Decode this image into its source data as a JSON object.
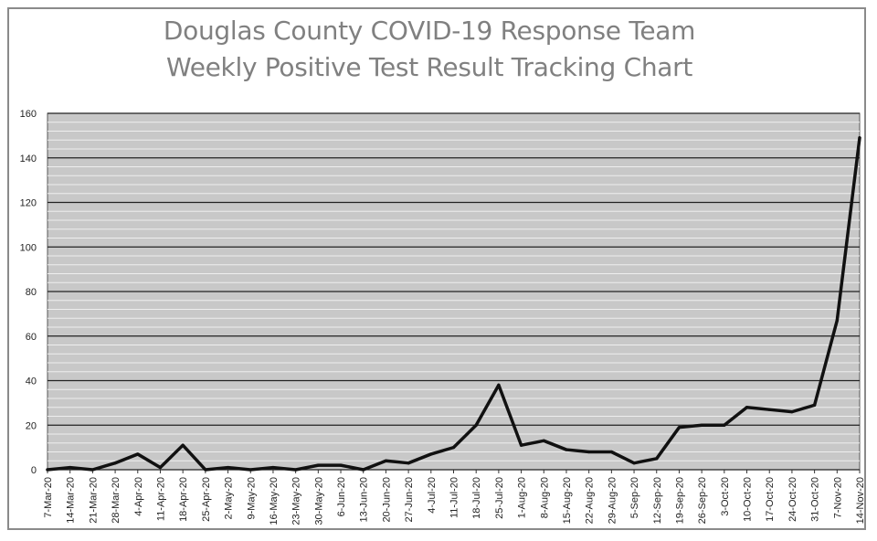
{
  "chart_data": {
    "type": "line",
    "title": "Douglas County COVID-19 Response Team",
    "subtitle": "Weekly Positive Test Result Tracking Chart",
    "xlabel": "",
    "ylabel": "",
    "ylim": [
      0,
      160
    ],
    "yticks": [
      "0",
      "20",
      "40",
      "60",
      "80",
      "100",
      "120",
      "140",
      "160"
    ],
    "grid": true,
    "categories": [
      "7-Mar-20",
      "14-Mar-20",
      "21-Mar-20",
      "28-Mar-20",
      "4-Apr-20",
      "11-Apr-20",
      "18-Apr-20",
      "25-Apr-20",
      "2-May-20",
      "9-May-20",
      "16-May-20",
      "23-May-20",
      "30-May-20",
      "6-Jun-20",
      "13-Jun-20",
      "20-Jun-20",
      "27-Jun-20",
      "4-Jul-20",
      "11-Jul-20",
      "18-Jul-20",
      "25-Jul-20",
      "1-Aug-20",
      "8-Aug-20",
      "15-Aug-20",
      "22-Aug-20",
      "29-Aug-20",
      "5-Sep-20",
      "12-Sep-20",
      "19-Sep-20",
      "26-Sep-20",
      "3-Oct-20",
      "10-Oct-20",
      "17-Oct-20",
      "24-Oct-20",
      "31-Oct-20",
      "7-Nov-20",
      "14-Nov-20"
    ],
    "series": [
      {
        "values": [
          0,
          1,
          0,
          3,
          7,
          1,
          11,
          0,
          1,
          0,
          1,
          0,
          2,
          2,
          0,
          4,
          3,
          7,
          10,
          20,
          38,
          11,
          13,
          9,
          8,
          8,
          3,
          5,
          19,
          20,
          20,
          28,
          27,
          26,
          29,
          67,
          149
        ]
      }
    ],
    "colors": {
      "plot_bg": "#c8c8c8",
      "line": "#111111",
      "major_grid": "#222222",
      "minor_grid": "#eeeeee",
      "title": "#808080"
    }
  }
}
